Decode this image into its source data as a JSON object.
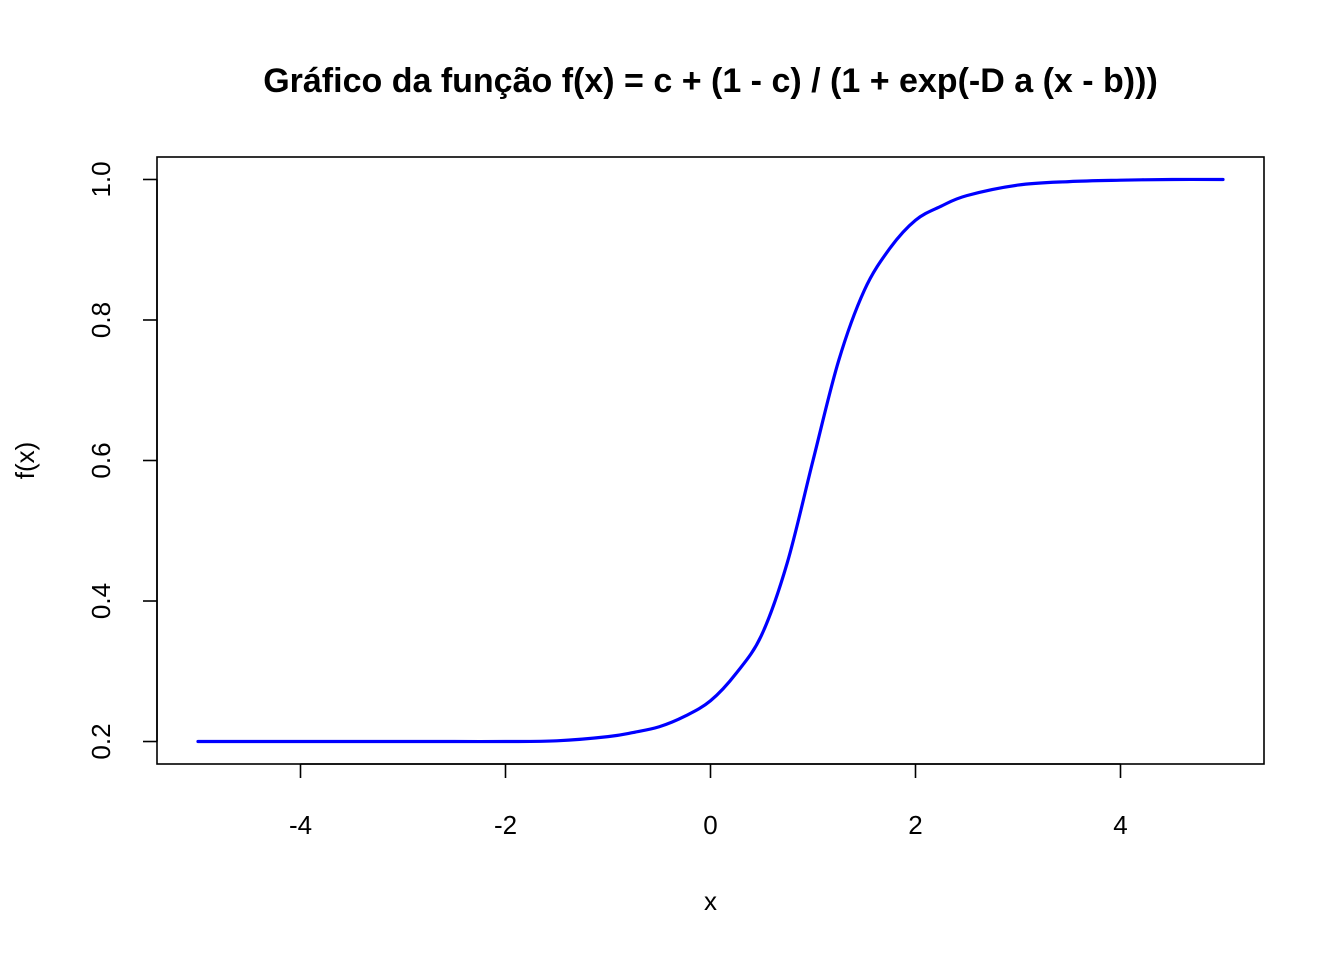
{
  "chart_data": {
    "type": "line",
    "title": "Gráfico da função f(x) = c + (1 - c) / (1 + exp(-D a (x - b)))",
    "xlabel": "x",
    "ylabel": "f(x)",
    "xlim": [
      -5.4,
      5.4
    ],
    "ylim": [
      0.168,
      1.032
    ],
    "x_ticks": [
      -4,
      -2,
      0,
      2,
      4
    ],
    "x_tick_labels": [
      "-4",
      "-2",
      "0",
      "2",
      "4"
    ],
    "y_ticks": [
      0.2,
      0.4,
      0.6,
      0.8,
      1.0
    ],
    "y_tick_labels": [
      "0.2",
      "0.4",
      "0.6",
      "0.8",
      "1.0"
    ],
    "grid": false,
    "line_color": "#0000ff",
    "series": [
      {
        "x": [
          -5,
          -4.5,
          -4,
          -3.5,
          -3,
          -2.5,
          -2,
          -1.5,
          -1,
          -0.75,
          -0.5,
          -0.25,
          0,
          0.25,
          0.5,
          0.75,
          1,
          1.25,
          1.5,
          1.75,
          2,
          2.25,
          2.5,
          3,
          3.5,
          4,
          4.5,
          5
        ],
        "y": [
          0.2,
          0.2,
          0.2,
          0.2,
          0.2,
          0.2,
          0.2,
          0.201,
          0.207,
          0.213,
          0.221,
          0.236,
          0.258,
          0.297,
          0.352,
          0.455,
          0.6,
          0.742,
          0.842,
          0.902,
          0.942,
          0.962,
          0.977,
          0.992,
          0.997,
          0.999,
          1.0,
          1.0
        ]
      }
    ]
  }
}
